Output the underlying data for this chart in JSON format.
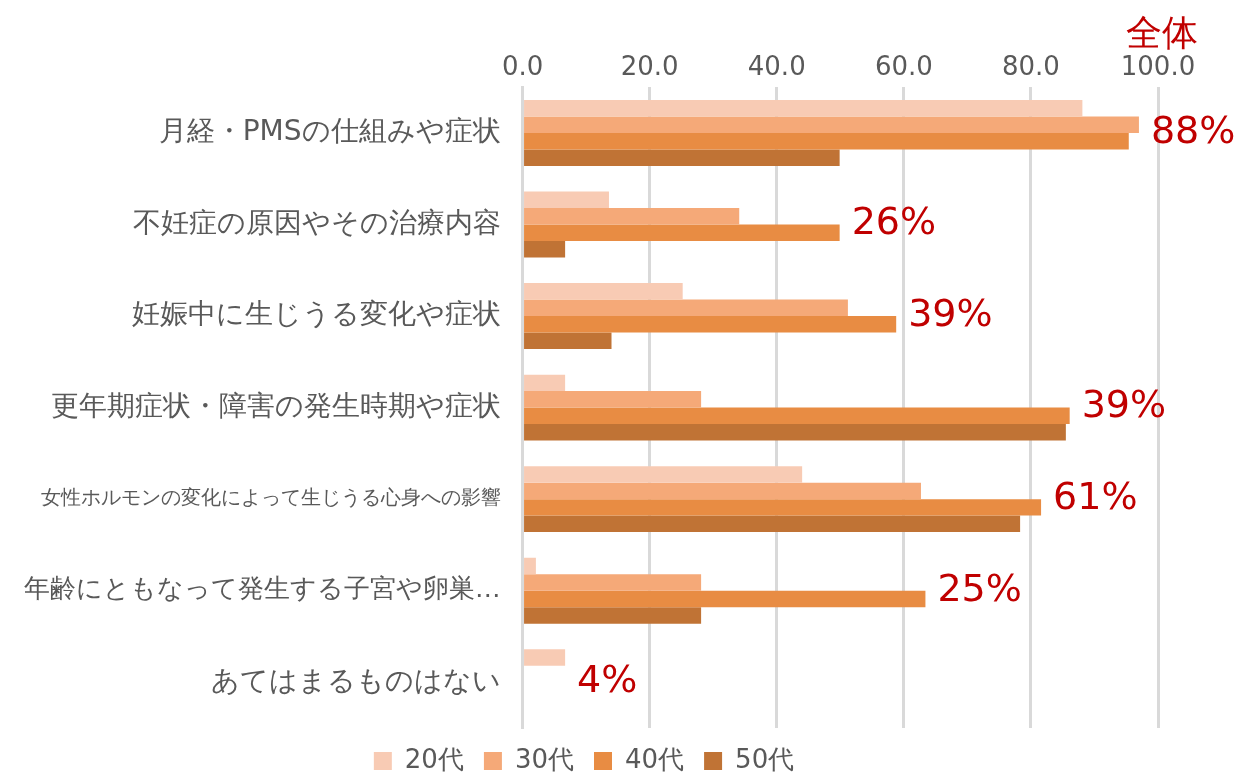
{
  "chart_data": {
    "type": "bar",
    "orientation": "horizontal",
    "categories": [
      "月経・PMSの仕組みや症状",
      "不妊症の原因やその治療内容",
      "妊娠中に生じうる変化や症状",
      "更年期症状・障害の発生時期や症状",
      "女性ホルモンの変化によって生じうる心身への影響",
      "年齢にともなって発生する子宮や卵巣…",
      "あてはまるものはない"
    ],
    "series": [
      {
        "name": "20代",
        "color": "#f8cbb4",
        "values": [
          88.1,
          13.6,
          25.2,
          6.7,
          44.0,
          2.1,
          6.7
        ]
      },
      {
        "name": "30代",
        "color": "#f5a978",
        "values": [
          97.0,
          34.1,
          51.2,
          28.1,
          62.7,
          28.1,
          0
        ]
      },
      {
        "name": "40代",
        "color": "#e88c43",
        "values": [
          95.4,
          49.9,
          58.8,
          86.1,
          81.6,
          63.4,
          0
        ]
      },
      {
        "name": "50代",
        "color": "#c07335",
        "values": [
          49.9,
          6.7,
          14.0,
          85.5,
          78.3,
          28.1,
          0
        ]
      }
    ],
    "xlim": [
      0,
      100
    ],
    "xticks": [
      {
        "value": 0,
        "label": "0.0"
      },
      {
        "value": 20,
        "label": "20.0"
      },
      {
        "value": 40,
        "label": "40.0"
      },
      {
        "value": 60,
        "label": "60.0"
      },
      {
        "value": 80,
        "label": "80.0"
      },
      {
        "value": 100,
        "label": "100.0"
      }
    ],
    "grid": "x",
    "legend": "bottom",
    "annotations": [
      "全体",
      "88%",
      "26%",
      "39%",
      "39%",
      "61%",
      "25%",
      "4%"
    ]
  }
}
